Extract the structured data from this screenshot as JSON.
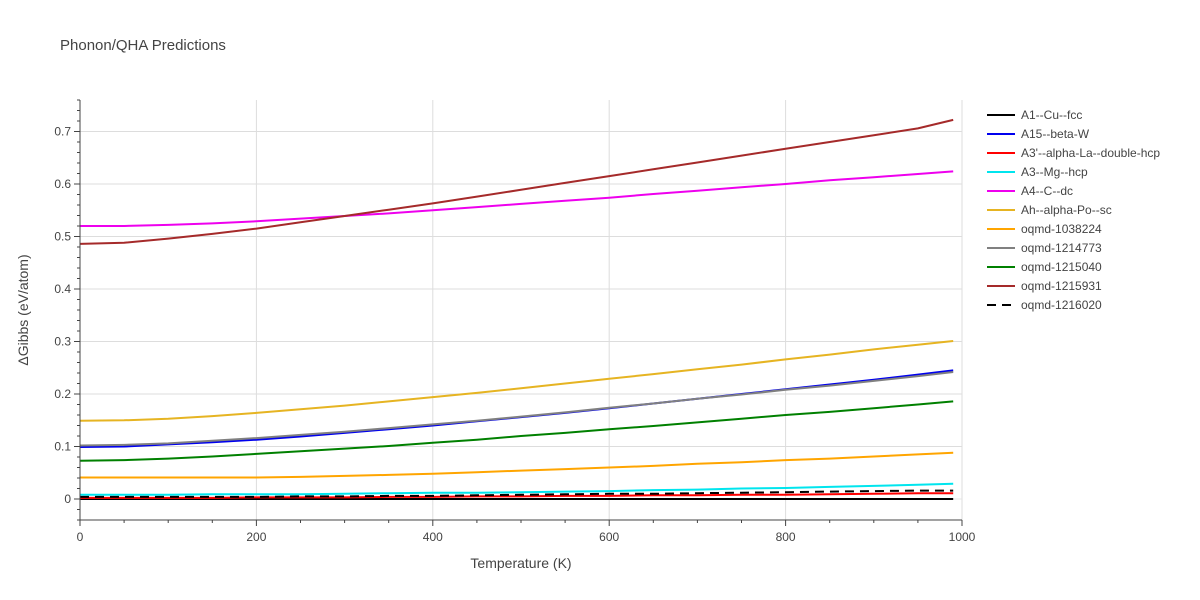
{
  "chart_data": {
    "type": "line",
    "title": "Phonon/QHA Predictions",
    "xlabel": "Temperature (K)",
    "ylabel": "ΔGibbs (eV/atom)",
    "xlim": [
      0,
      1000
    ],
    "ylim": [
      -0.04,
      0.76
    ],
    "xticks": [
      0,
      200,
      400,
      600,
      800,
      1000
    ],
    "xtick_labels": [
      "0",
      "200",
      "400",
      "600",
      "800",
      "1000"
    ],
    "yticks": [
      0,
      0.1,
      0.2,
      0.3,
      0.4,
      0.5,
      0.6,
      0.7
    ],
    "ytick_labels": [
      "0",
      "0.1",
      "0.2",
      "0.3",
      "0.4",
      "0.5",
      "0.6",
      "0.7"
    ],
    "grid": true,
    "legend_position": "right",
    "x": [
      0,
      50,
      100,
      150,
      200,
      250,
      300,
      350,
      400,
      450,
      500,
      550,
      600,
      650,
      700,
      750,
      800,
      850,
      900,
      950,
      990
    ],
    "series": [
      {
        "name": "A1--Cu--fcc",
        "color": "#000000",
        "dash": "solid",
        "values": [
          0,
          0,
          0,
          0,
          0,
          0,
          0,
          0,
          0,
          0,
          0,
          0,
          0,
          0,
          0,
          0,
          0,
          0,
          0,
          0,
          0
        ]
      },
      {
        "name": "A15--beta-W",
        "color": "#0000ee",
        "dash": "solid",
        "values": [
          0.099,
          0.1,
          0.104,
          0.108,
          0.113,
          0.119,
          0.126,
          0.133,
          0.14,
          0.148,
          0.156,
          0.164,
          0.173,
          0.182,
          0.191,
          0.2,
          0.209,
          0.218,
          0.227,
          0.237,
          0.245
        ]
      },
      {
        "name": "A3'--alpha-La--double-hcp",
        "color": "#ff0000",
        "dash": "solid",
        "values": [
          0.002,
          0.002,
          0.002,
          0.002,
          0.003,
          0.003,
          0.003,
          0.004,
          0.004,
          0.005,
          0.005,
          0.006,
          0.006,
          0.007,
          0.007,
          0.008,
          0.008,
          0.009,
          0.01,
          0.011,
          0.011
        ]
      },
      {
        "name": "A3--Mg--hcp",
        "color": "#00e5ee",
        "dash": "solid",
        "values": [
          0.008,
          0.008,
          0.008,
          0.009,
          0.009,
          0.009,
          0.01,
          0.011,
          0.012,
          0.012,
          0.013,
          0.014,
          0.015,
          0.017,
          0.018,
          0.02,
          0.021,
          0.023,
          0.025,
          0.027,
          0.029
        ]
      },
      {
        "name": "A4--C--dc",
        "color": "#ee00ee",
        "dash": "solid",
        "values": [
          0.52,
          0.52,
          0.522,
          0.525,
          0.529,
          0.534,
          0.539,
          0.544,
          0.55,
          0.556,
          0.562,
          0.568,
          0.574,
          0.581,
          0.587,
          0.594,
          0.6,
          0.607,
          0.613,
          0.619,
          0.624
        ]
      },
      {
        "name": "Ah--alpha-Po--sc",
        "color": "#e6b422",
        "dash": "solid",
        "values": [
          0.149,
          0.15,
          0.153,
          0.158,
          0.164,
          0.171,
          0.178,
          0.186,
          0.194,
          0.202,
          0.211,
          0.22,
          0.229,
          0.238,
          0.247,
          0.256,
          0.266,
          0.275,
          0.285,
          0.294,
          0.301
        ]
      },
      {
        "name": "oqmd-1038224",
        "color": "#ffa500",
        "dash": "solid",
        "values": [
          0.041,
          0.041,
          0.041,
          0.041,
          0.041,
          0.042,
          0.044,
          0.046,
          0.048,
          0.051,
          0.054,
          0.057,
          0.06,
          0.063,
          0.067,
          0.07,
          0.074,
          0.077,
          0.081,
          0.085,
          0.088
        ]
      },
      {
        "name": "oqmd-1214773",
        "color": "#808080",
        "dash": "solid",
        "values": [
          0.102,
          0.103,
          0.106,
          0.111,
          0.116,
          0.122,
          0.128,
          0.135,
          0.142,
          0.149,
          0.157,
          0.165,
          0.174,
          0.182,
          0.191,
          0.199,
          0.208,
          0.216,
          0.225,
          0.234,
          0.242
        ]
      },
      {
        "name": "oqmd-1215040",
        "color": "#008000",
        "dash": "solid",
        "values": [
          0.073,
          0.074,
          0.077,
          0.081,
          0.086,
          0.091,
          0.096,
          0.101,
          0.107,
          0.113,
          0.12,
          0.126,
          0.133,
          0.139,
          0.146,
          0.153,
          0.16,
          0.166,
          0.173,
          0.18,
          0.186
        ]
      },
      {
        "name": "oqmd-1215931",
        "color": "#a52a2a",
        "dash": "solid",
        "values": [
          0.486,
          0.488,
          0.496,
          0.505,
          0.515,
          0.527,
          0.539,
          0.551,
          0.563,
          0.576,
          0.589,
          0.602,
          0.615,
          0.628,
          0.641,
          0.654,
          0.667,
          0.68,
          0.693,
          0.706,
          0.722
        ]
      },
      {
        "name": "oqmd-1216020",
        "color": "#000000",
        "dash": "dash",
        "values": [
          0.004,
          0.004,
          0.004,
          0.004,
          0.004,
          0.005,
          0.005,
          0.006,
          0.006,
          0.007,
          0.008,
          0.009,
          0.01,
          0.01,
          0.011,
          0.012,
          0.013,
          0.014,
          0.015,
          0.016,
          0.016
        ]
      }
    ]
  }
}
